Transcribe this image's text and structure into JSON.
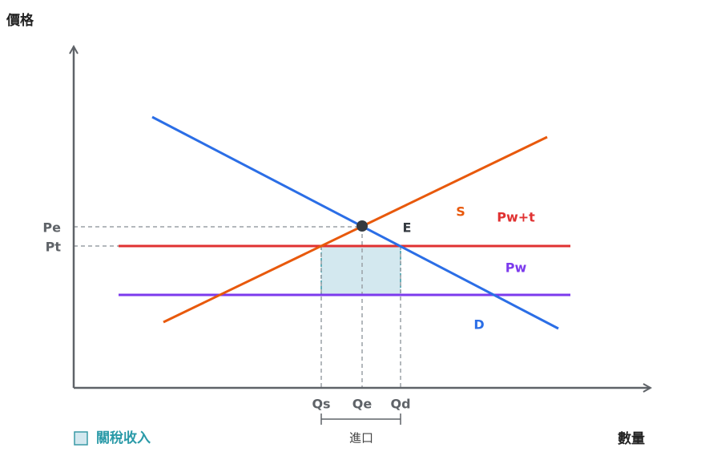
{
  "axes": {
    "y_label": "價格",
    "x_label": "數量"
  },
  "price_labels": {
    "pe": "Pe",
    "pt": "Pt"
  },
  "curve_labels": {
    "equilibrium": "E",
    "supply": "S",
    "world_price_tariff": "Pw+t",
    "world_price": "Pw",
    "demand": "D"
  },
  "quantity_labels": {
    "qs": "Qs",
    "qe": "Qe",
    "qd": "Qd"
  },
  "import_label": "進口",
  "legend": {
    "label": "關稅收入"
  }
}
